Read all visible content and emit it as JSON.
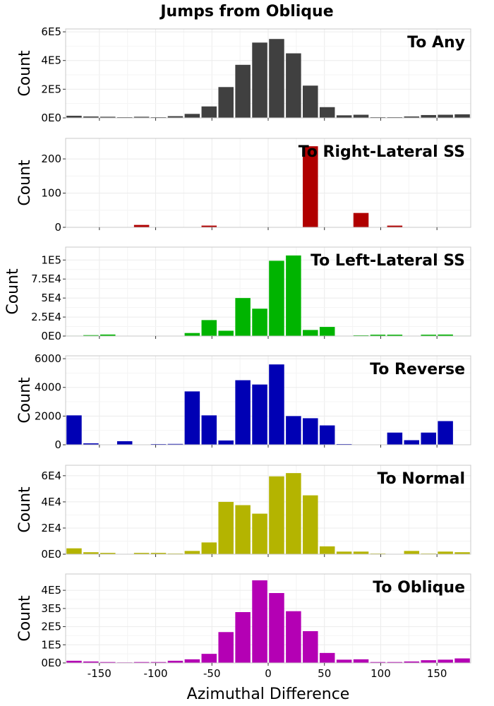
{
  "chart_data": {
    "type": "bar",
    "title": "Jumps from Oblique",
    "xlabel": "Azimuthal Difference",
    "xlim": [
      -180,
      180
    ],
    "bin_width": 15,
    "x": [
      -172.5,
      -157.5,
      -142.5,
      -127.5,
      -112.5,
      -97.5,
      -82.5,
      -67.5,
      -52.5,
      -37.5,
      -22.5,
      -7.5,
      7.5,
      22.5,
      37.5,
      52.5,
      67.5,
      82.5,
      97.5,
      112.5,
      127.5,
      142.5,
      157.5,
      172.5
    ],
    "x_ticks": [
      -150,
      -100,
      -50,
      0,
      50,
      100,
      150
    ],
    "x_tick_labels": [
      "-150",
      "-100",
      "-50",
      "0",
      "50",
      "100",
      "150"
    ],
    "grid": true,
    "panels": [
      {
        "title": "To Any",
        "ylabel": "Count",
        "color": "#404040",
        "ylim": [
          0,
          620000
        ],
        "y_ticks": [
          0,
          200000,
          400000,
          600000
        ],
        "y_tick_labels": [
          "0E0",
          "2E5",
          "4E5",
          "6E5"
        ],
        "values": [
          15000,
          10000,
          8000,
          5000,
          8000,
          5000,
          12000,
          28000,
          80000,
          215000,
          370000,
          525000,
          550000,
          450000,
          225000,
          75000,
          18000,
          22000,
          5000,
          5000,
          10000,
          20000,
          22000,
          25000
        ]
      },
      {
        "title": "To Right-Lateral SS",
        "ylabel": "Count",
        "color": "#b00000",
        "ylim": [
          0,
          260
        ],
        "y_ticks": [
          0,
          100,
          200
        ],
        "y_tick_labels": [
          "0",
          "100",
          "200"
        ],
        "values": [
          0,
          0,
          0,
          0,
          7,
          0,
          0,
          0,
          5,
          0,
          0,
          0,
          0,
          0,
          237,
          0,
          0,
          42,
          0,
          5,
          0,
          0,
          0,
          0
        ]
      },
      {
        "title": "To Left-Lateral SS",
        "ylabel": "Count",
        "color": "#00b400",
        "ylim": [
          0,
          117000
        ],
        "y_ticks": [
          0,
          25000,
          50000,
          75000,
          100000
        ],
        "y_tick_labels": [
          "0E0",
          "2.5E4",
          "5E4",
          "7.5E4",
          "1E5"
        ],
        "values": [
          500,
          1200,
          2000,
          0,
          0,
          0,
          0,
          4000,
          21000,
          7000,
          50000,
          36000,
          99000,
          106000,
          8000,
          12000,
          0,
          1000,
          1800,
          1800,
          0,
          1800,
          2000,
          500
        ]
      },
      {
        "title": "To Reverse",
        "ylabel": "Count",
        "color": "#0000b4",
        "ylim": [
          0,
          6200
        ],
        "y_ticks": [
          0,
          2000,
          4000,
          6000
        ],
        "y_tick_labels": [
          "0",
          "2000",
          "4000",
          "6000"
        ],
        "values": [
          2050,
          100,
          0,
          250,
          0,
          50,
          60,
          3720,
          2050,
          300,
          4500,
          4200,
          5600,
          2000,
          1850,
          1350,
          50,
          0,
          0,
          850,
          320,
          850,
          1650,
          0
        ]
      },
      {
        "title": "To Normal",
        "ylabel": "Count",
        "color": "#b4b400",
        "ylim": [
          0,
          68000
        ],
        "y_ticks": [
          0,
          20000,
          40000,
          60000
        ],
        "y_tick_labels": [
          "0E0",
          "2E4",
          "4E4",
          "6E4"
        ],
        "values": [
          4500,
          1500,
          1000,
          0,
          1000,
          1000,
          500,
          2500,
          9000,
          40000,
          37500,
          31000,
          59500,
          62000,
          45000,
          6000,
          2000,
          2000,
          500,
          0,
          2500,
          500,
          2000,
          1500
        ]
      },
      {
        "title": "To Oblique",
        "ylabel": "Count",
        "color": "#b400b4",
        "ylim": [
          0,
          490000
        ],
        "y_ticks": [
          0,
          100000,
          200000,
          300000,
          400000
        ],
        "y_tick_labels": [
          "0E0",
          "1E5",
          "2E5",
          "3E5",
          "4E5"
        ],
        "values": [
          12000,
          8000,
          5000,
          3000,
          5000,
          5000,
          12000,
          20000,
          50000,
          170000,
          280000,
          455000,
          385000,
          285000,
          175000,
          55000,
          18000,
          20000,
          5000,
          5000,
          8000,
          15000,
          18000,
          25000
        ]
      }
    ]
  }
}
